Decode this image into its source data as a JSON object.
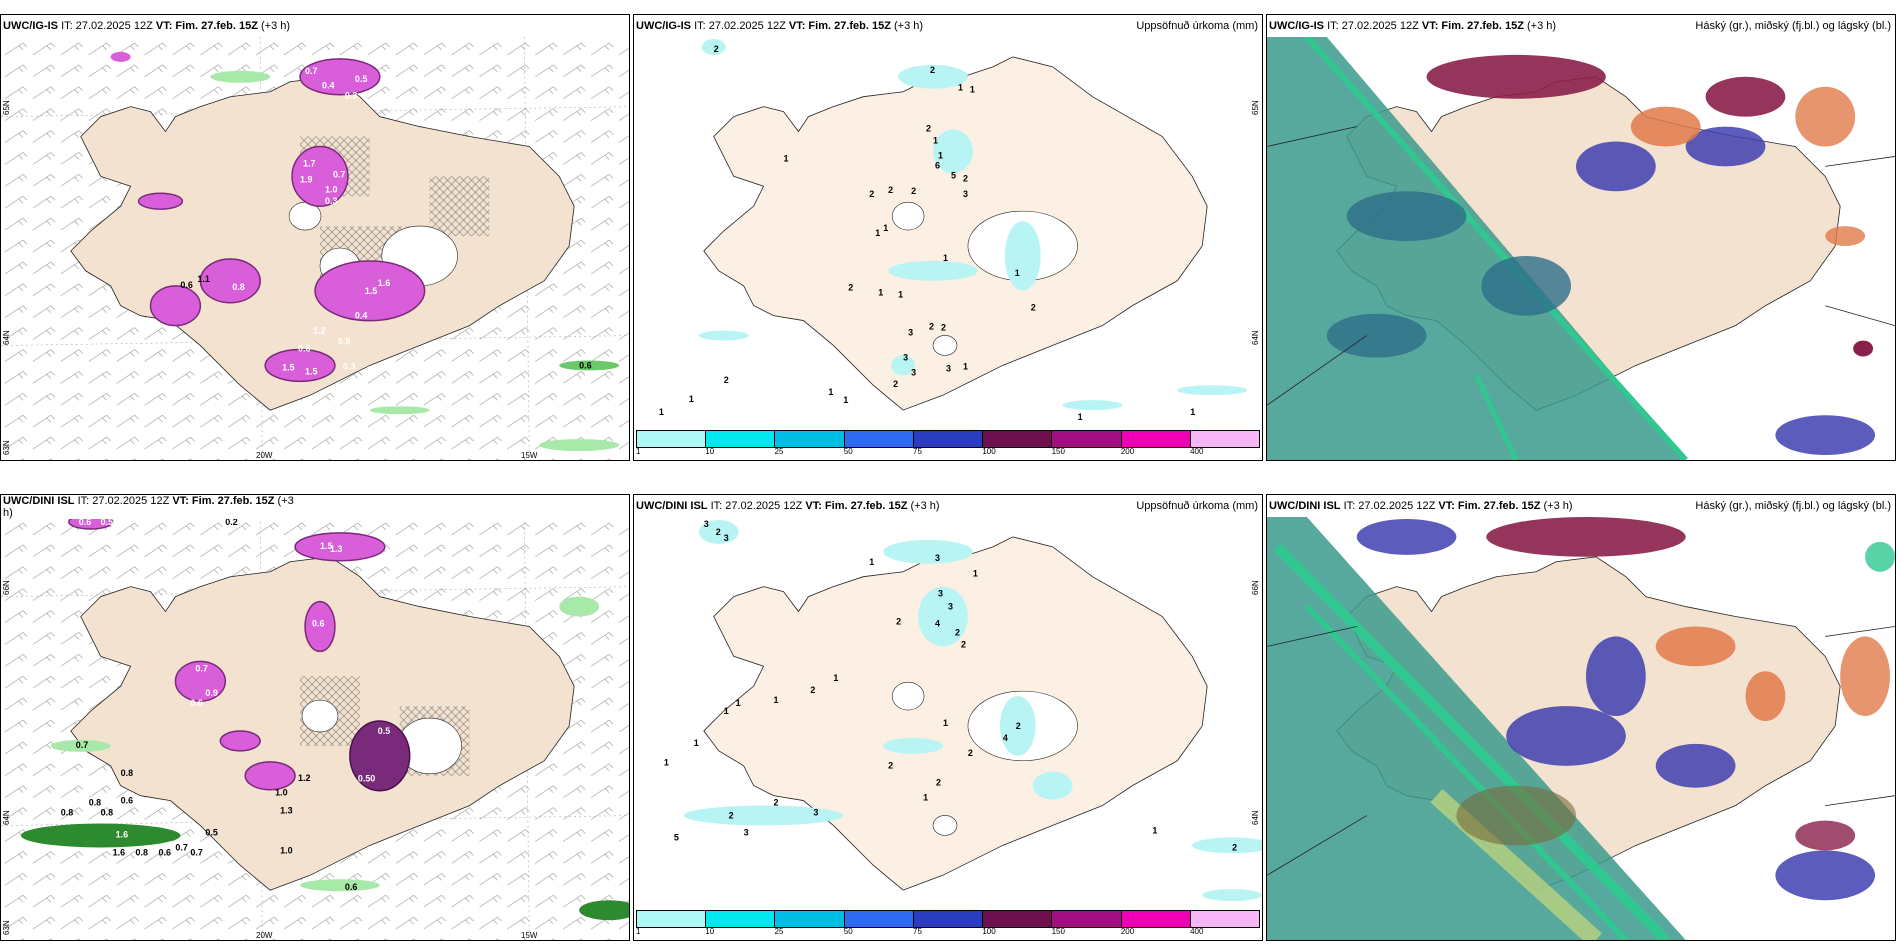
{
  "panels": [
    {
      "model": "UWC/IG-IS",
      "it_label": "IT: 27.02.2025 12Z",
      "vt_label": "VT: Fim. 27.feb. 15Z",
      "lead": "(+3 h)",
      "right_label": "",
      "lat_labels": [
        "65N",
        "64N",
        "63N"
      ],
      "lon_labels": [
        "20W",
        "15W"
      ],
      "values": [
        "0.7",
        "0.5",
        "0.4",
        "0.3",
        "1.7",
        "1.9",
        "0.7",
        "1.0",
        "0.3",
        "0.6",
        "1.1",
        "0.8",
        "1.5",
        "1.6",
        "0.4",
        "1.2",
        "0.9",
        "0.6",
        "1.5",
        "1.5",
        "0.3",
        "0.6"
      ]
    },
    {
      "model": "UWC/IG-IS",
      "it_label": "IT: 27.02.2025 12Z",
      "vt_label": "VT: Fim. 27.feb. 15Z",
      "lead": "(+3 h)",
      "right_label": "Uppsöfnuð úrkoma (mm)",
      "lat_labels": [
        "65N",
        "64N"
      ],
      "lon_labels": [],
      "values": [
        "2",
        "2",
        "1",
        "1",
        "2",
        "1",
        "1",
        "6",
        "5",
        "3",
        "2",
        "2",
        "2",
        "1",
        "1",
        "1",
        "1",
        "2",
        "1",
        "1",
        "3",
        "2",
        "2",
        "3",
        "2",
        "1",
        "1",
        "3",
        "3",
        "2",
        "1",
        "2",
        "1",
        "1",
        "2",
        "1",
        "1",
        "1"
      ],
      "legend": {
        "colors": [
          "#aef7f7",
          "#00e8ee",
          "#00bde6",
          "#2d6cf0",
          "#2c3cbf",
          "#6e0f4e",
          "#a0107f",
          "#f000b4",
          "#f7b7f7"
        ],
        "ticks": [
          "1",
          "10",
          "25",
          "50",
          "75",
          "100",
          "150",
          "200",
          "400"
        ]
      }
    },
    {
      "model": "UWC/IG-IS",
      "it_label": "IT: 27.02.2025 12Z",
      "vt_label": "VT: Fim. 27.feb. 15Z",
      "lead": "(+3 h)",
      "right_label": "Háský (gr.), miðský (fj.bl.) og lágský (bl.)"
    },
    {
      "model": "UWC/DINI ISL",
      "it_label": "IT: 27.02.2025 12Z",
      "vt_label": "VT: Fim. 27.feb. 15Z",
      "lead": "(+3",
      "lead2": "h)",
      "right_label": "",
      "lat_labels": [
        "66N",
        "64N",
        "63N"
      ],
      "lon_labels": [
        "20W",
        "15W"
      ],
      "values": [
        "0.6",
        "0.5",
        "0.2",
        "1.5",
        "0.4",
        "1.3",
        "0.6",
        "0.7",
        "0.9",
        "0.6",
        "0.7",
        "0.8",
        "0.8",
        "1.6",
        "0.6",
        "1.6",
        "0.8",
        "0.7",
        "0.5",
        "1.0",
        "1.3",
        "1.2",
        "0.5",
        "0.50",
        "0.6",
        "1.0",
        "0.7",
        "0.6",
        "0.8",
        "0.8"
      ]
    },
    {
      "model": "UWC/DINI ISL",
      "it_label": "IT: 27.02.2025 12Z",
      "vt_label": "VT: Fim. 27.feb. 15Z",
      "lead": "(+3 h)",
      "right_label": "Uppsöfnuð úrkoma (mm)",
      "lat_labels": [
        "66N",
        "64N"
      ],
      "lon_labels": [],
      "values": [
        "2",
        "3",
        "3",
        "1",
        "3",
        "3",
        "3",
        "4",
        "2",
        "2",
        "2",
        "1",
        "1",
        "2",
        "1",
        "1",
        "1",
        "2",
        "4",
        "1",
        "1",
        "1",
        "2",
        "2",
        "3",
        "1",
        "2",
        "2",
        "5",
        "3",
        "2",
        "1",
        "2"
      ],
      "legend": {
        "colors": [
          "#aef7f7",
          "#00e8ee",
          "#00bde6",
          "#2d6cf0",
          "#2c3cbf",
          "#6e0f4e",
          "#a0107f",
          "#f000b4",
          "#f7b7f7"
        ],
        "ticks": [
          "1",
          "10",
          "25",
          "50",
          "75",
          "100",
          "150",
          "200",
          "400"
        ]
      }
    },
    {
      "model": "UWC/DINI ISL",
      "it_label": "IT: 27.02.2025 12Z",
      "vt_label": "VT: Fim. 27.feb. 15Z",
      "lead": "(+3 h)",
      "right_label": "Háský (gr.), miðský (fj.bl.) og lágský (bl.)"
    }
  ],
  "colors": {
    "land": "#f5e6d3",
    "precip_pink": "#e060e0",
    "precip_dark": "#7a2a7a",
    "light_green": "#a8e8a8",
    "cyan_light": "#b8f4f4",
    "cloud_teal": "#3a9a8c",
    "cloud_blue": "#3f3fb0",
    "cloud_maroon": "#8a1f4a",
    "cloud_orange": "#e07a4a",
    "cloud_green": "#30c890"
  }
}
